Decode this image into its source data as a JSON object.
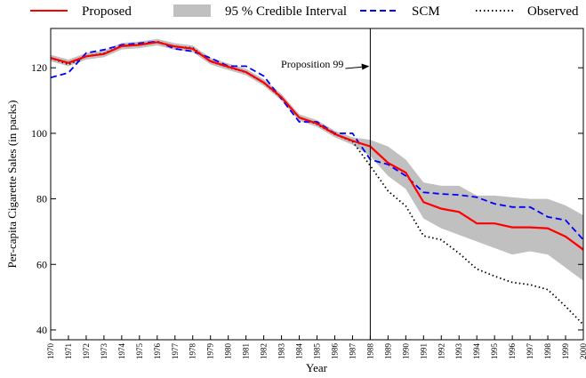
{
  "chart_data": {
    "type": "line",
    "xlabel": "Year",
    "ylabel": "Per-capita Cigarette Sales (in packs)",
    "x": [
      1970,
      1971,
      1972,
      1973,
      1974,
      1975,
      1976,
      1977,
      1978,
      1979,
      1980,
      1981,
      1982,
      1983,
      1984,
      1985,
      1986,
      1987,
      1988,
      1989,
      1990,
      1991,
      1992,
      1993,
      1994,
      1995,
      1996,
      1997,
      1998,
      1999,
      2000
    ],
    "xlim": [
      1970,
      2000
    ],
    "xticks": [
      1970,
      1971,
      1972,
      1973,
      1974,
      1975,
      1976,
      1977,
      1978,
      1979,
      1980,
      1981,
      1982,
      1983,
      1984,
      1985,
      1986,
      1987,
      1988,
      1989,
      1990,
      1991,
      1992,
      1993,
      1994,
      1995,
      1996,
      1997,
      1998,
      1999,
      2000
    ],
    "ylim": [
      37,
      132
    ],
    "yticks": [
      40,
      60,
      80,
      100,
      120
    ],
    "annotation": {
      "text": "Proposition 99",
      "x": 1988
    },
    "series": [
      {
        "name": "Proposed",
        "color": "#ff0000",
        "style": "solid",
        "values": [
          123,
          121.5,
          123.5,
          124.2,
          126.6,
          127,
          127.8,
          126.5,
          125.8,
          122,
          120.3,
          118.7,
          115.5,
          111,
          104.8,
          103,
          99.8,
          97.7,
          96,
          91,
          88,
          79,
          77,
          76,
          72.5,
          72.5,
          71.3,
          71.3,
          71,
          68.5,
          64.5
        ]
      },
      {
        "name": "95 % Credible Interval",
        "color": "#c0c0c0",
        "style": "band",
        "lower": [
          122,
          120.5,
          122.5,
          123.2,
          125.6,
          126,
          126.8,
          125.5,
          124.8,
          121,
          119.3,
          117.7,
          114.5,
          110,
          103.8,
          102,
          98.8,
          96.5,
          93,
          87,
          83,
          74,
          71,
          69,
          67,
          65,
          63,
          64,
          63,
          59,
          55
        ],
        "upper": [
          124,
          122.5,
          124.5,
          125.2,
          127.6,
          128,
          128.8,
          127.5,
          126.8,
          123,
          121.3,
          119.7,
          116.5,
          112,
          105.8,
          104,
          100.8,
          98.8,
          98,
          96,
          92,
          85,
          84,
          84,
          81,
          81,
          80.5,
          80,
          80,
          78,
          75
        ]
      },
      {
        "name": "SCM",
        "color": "#0000ff",
        "style": "dashed",
        "values": [
          117,
          118.5,
          124.5,
          125.5,
          127,
          127.5,
          128,
          125.8,
          125,
          123,
          120.5,
          120.5,
          117.5,
          110.5,
          103.5,
          103.5,
          100,
          100,
          92,
          90.5,
          87,
          82,
          81.5,
          81.2,
          80.5,
          78.5,
          77.5,
          77.5,
          74.5,
          73.5,
          67.5
        ]
      },
      {
        "name": "Observed",
        "color": "#000000",
        "style": "dotted",
        "values": [
          123,
          121,
          123.5,
          124.4,
          126.7,
          127.1,
          128,
          126.4,
          126.1,
          121.9,
          120.2,
          118.6,
          115.4,
          110.8,
          104.8,
          102.8,
          99.7,
          97.5,
          90.1,
          82.4,
          77.8,
          68.7,
          67.5,
          63.4,
          58.6,
          56.4,
          54.5,
          53.8,
          52.3,
          47.2,
          41.6
        ]
      }
    ]
  }
}
